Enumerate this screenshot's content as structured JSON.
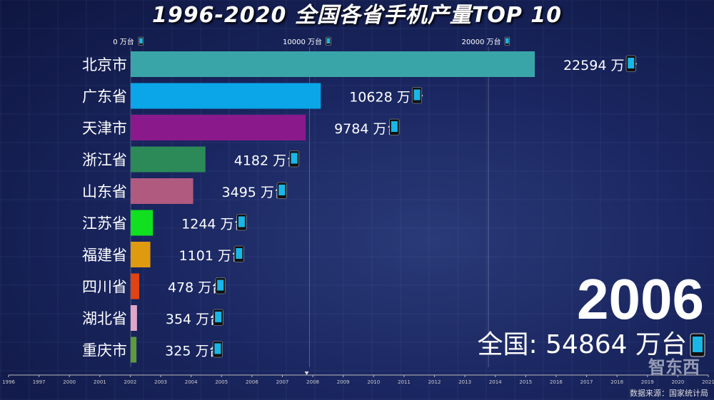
{
  "title": "1996-2020 全国各省手机产量TOP 10",
  "chart_data": {
    "type": "bar",
    "orientation": "horizontal",
    "unit": "万台",
    "categories": [
      "北京市",
      "广东省",
      "天津市",
      "浙江省",
      "山东省",
      "江苏省",
      "福建省",
      "四川省",
      "湖北省",
      "重庆市"
    ],
    "values": [
      22594,
      10628,
      9784,
      4182,
      3495,
      1244,
      1101,
      478,
      354,
      325
    ],
    "colors": [
      "#3aa5a8",
      "#0aa6e8",
      "#8a1a8c",
      "#2c8a58",
      "#b05a80",
      "#10e020",
      "#e09a10",
      "#e04412",
      "#e0a6c8",
      "#5c9a3c"
    ],
    "x_ticks": [
      0,
      10000,
      20000
    ],
    "x_tick_labels": [
      "0 万台",
      "10000 万台",
      "20000 万台"
    ],
    "value_labels": [
      "22594 万台",
      "10628 万台",
      "9784 万台",
      "4182 万台",
      "3495 万台",
      "1244 万台",
      "1101 万台",
      "478 万台",
      "354 万台",
      "325 万台"
    ],
    "grid": true,
    "timeline": {
      "years": [
        "1996",
        "1997",
        "2000",
        "2001",
        "2002",
        "2003",
        "2004",
        "2005",
        "2006",
        "2007",
        "2008",
        "2009",
        "2010",
        "2011",
        "2012",
        "2013",
        "2014",
        "2015",
        "2016",
        "2017",
        "2018",
        "2019",
        "2020",
        "2021"
      ],
      "current": 2006.8
    }
  },
  "year": "2006",
  "total_label": "全国: 54864 万台",
  "source": "数据来源：国家统计局",
  "logo": "智东西 zhidx.com",
  "icons": {
    "unit_icon": "mobile-phone-icon"
  }
}
